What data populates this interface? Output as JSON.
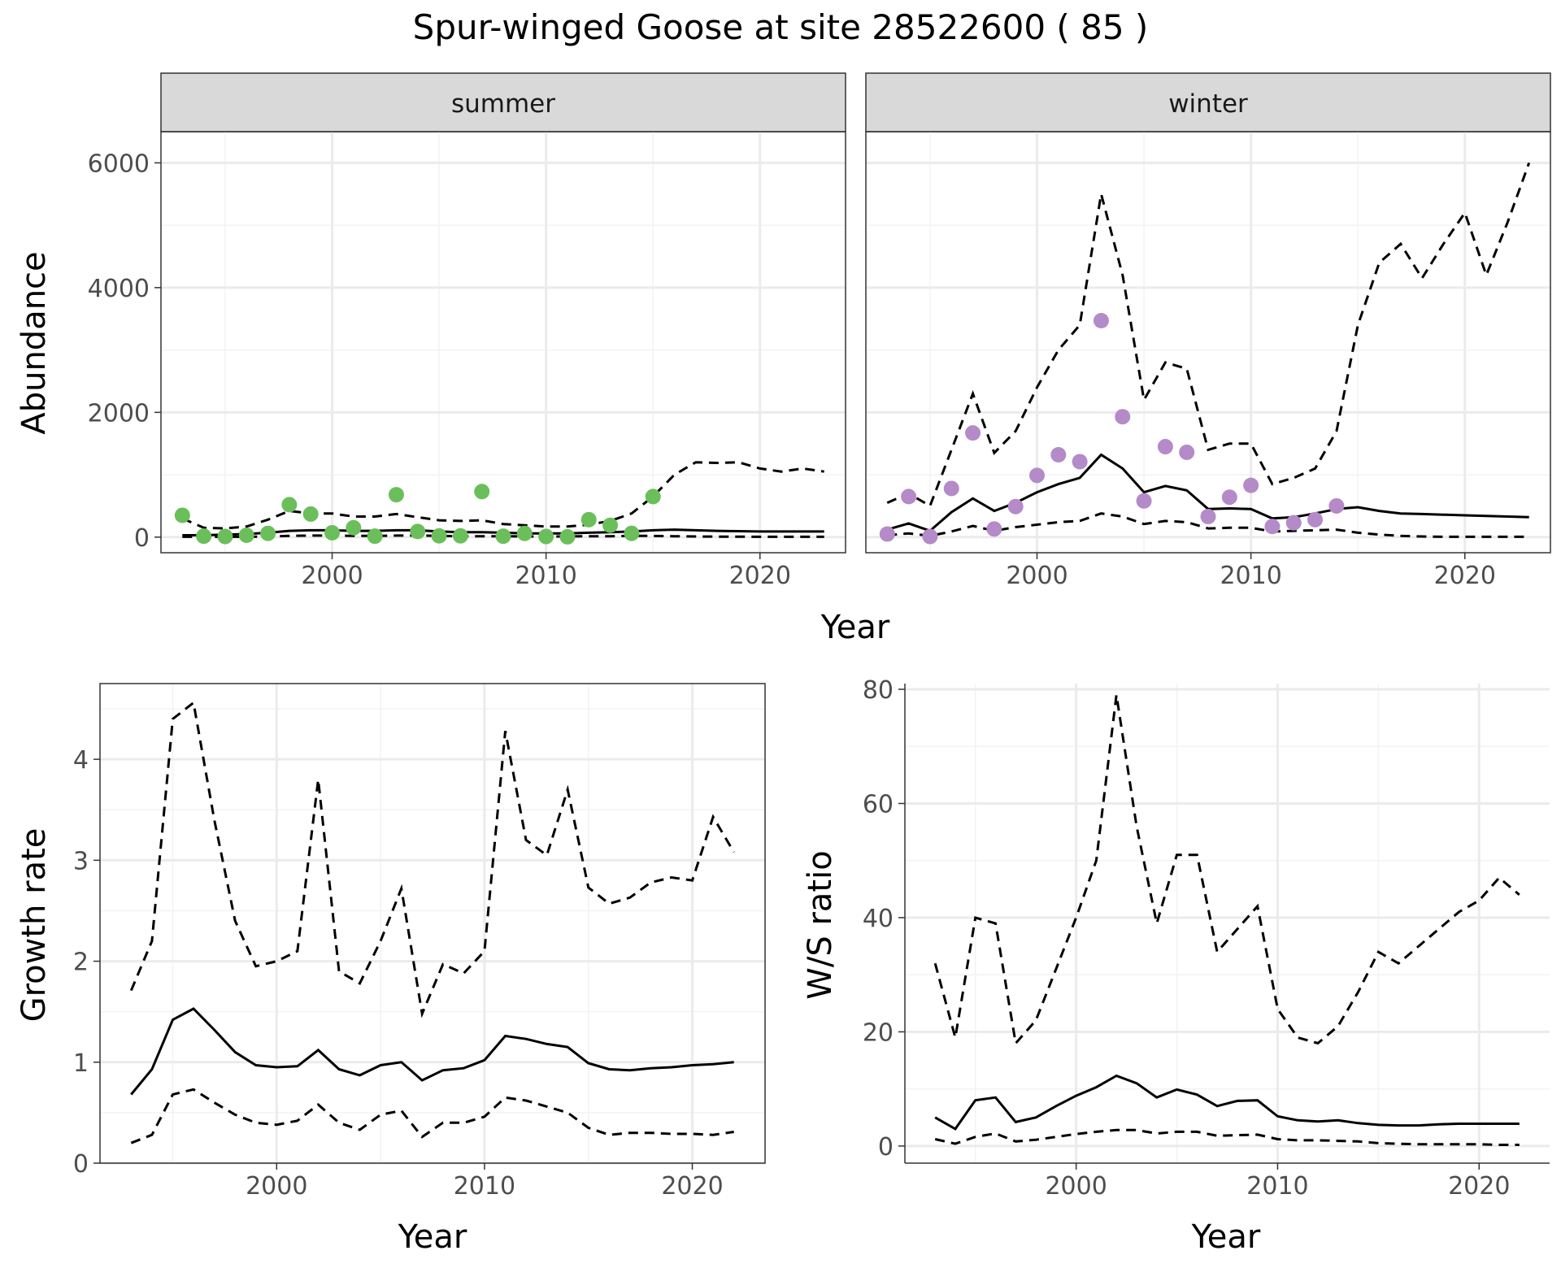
{
  "title": "Spur-winged Goose at site 28522600 ( 85 )",
  "colors": {
    "summer_points": "#6abf5a",
    "winter_points": "#b48ac8",
    "line": "#000000",
    "strip_fill": "#d9d9d9",
    "grid": "#ebebeb"
  },
  "chart_data": [
    {
      "type": "line",
      "panel": "abundance",
      "facets": [
        "summer",
        "winter"
      ],
      "xlabel": "Year",
      "ylabel": "Abundance",
      "xlim": [
        1992,
        2024
      ],
      "ylim": [
        -250,
        6500
      ],
      "xticks": [
        2000,
        2010,
        2020
      ],
      "yticks": [
        0,
        2000,
        4000,
        6000
      ],
      "grid": true,
      "facet_data": {
        "summer": {
          "x": [
            1993,
            1994,
            1995,
            1996,
            1997,
            1998,
            1999,
            2000,
            2001,
            2002,
            2003,
            2004,
            2005,
            2006,
            2007,
            2008,
            2009,
            2010,
            2011,
            2012,
            2013,
            2014,
            2015,
            2016,
            2017,
            2018,
            2019,
            2020,
            2021,
            2022,
            2023
          ],
          "mean": [
            30,
            30,
            40,
            50,
            70,
            100,
            110,
            110,
            100,
            100,
            110,
            110,
            90,
            80,
            80,
            70,
            60,
            60,
            60,
            70,
            80,
            90,
            110,
            120,
            110,
            100,
            95,
            90,
            90,
            90,
            90
          ],
          "upper": [
            300,
            150,
            140,
            170,
            280,
            420,
            380,
            380,
            330,
            330,
            370,
            320,
            270,
            260,
            270,
            210,
            190,
            170,
            170,
            200,
            260,
            380,
            650,
            1000,
            1200,
            1190,
            1200,
            1100,
            1050,
            1100,
            1050
          ],
          "lower": [
            5,
            5,
            5,
            5,
            10,
            20,
            25,
            25,
            20,
            20,
            25,
            25,
            20,
            15,
            15,
            15,
            10,
            10,
            10,
            15,
            15,
            20,
            20,
            15,
            10,
            8,
            8,
            5,
            5,
            5,
            5
          ],
          "points_x": [
            1993,
            1994,
            1995,
            1996,
            1997,
            1998,
            1999,
            2000,
            2001,
            2002,
            2003,
            2004,
            2005,
            2006,
            2007,
            2008,
            2009,
            2010,
            2011,
            2012,
            2013,
            2014,
            2015
          ],
          "points_y": [
            350,
            15,
            10,
            30,
            60,
            520,
            370,
            70,
            150,
            15,
            680,
            90,
            20,
            20,
            730,
            15,
            60,
            10,
            5,
            280,
            190,
            60,
            650
          ]
        },
        "winter": {
          "x": [
            1993,
            1994,
            1995,
            1996,
            1997,
            1998,
            1999,
            2000,
            2001,
            2002,
            2003,
            2004,
            2005,
            2006,
            2007,
            2008,
            2009,
            2010,
            2011,
            2012,
            2013,
            2014,
            2015,
            2016,
            2017,
            2018,
            2019,
            2020,
            2021,
            2022,
            2023
          ],
          "mean": [
            120,
            220,
            100,
            400,
            620,
            420,
            550,
            720,
            850,
            950,
            1320,
            1100,
            720,
            820,
            750,
            450,
            460,
            450,
            300,
            320,
            380,
            450,
            480,
            420,
            380,
            370,
            360,
            350,
            340,
            330,
            320
          ],
          "upper": [
            550,
            700,
            500,
            1400,
            2300,
            1350,
            1700,
            2400,
            3000,
            3400,
            5500,
            4200,
            2200,
            2800,
            2700,
            1400,
            1500,
            1500,
            850,
            950,
            1100,
            1700,
            3400,
            4400,
            4700,
            4150,
            4700,
            5200,
            4200,
            5050,
            6000
          ],
          "lower": [
            30,
            60,
            20,
            90,
            180,
            100,
            160,
            200,
            240,
            260,
            380,
            330,
            210,
            260,
            240,
            140,
            150,
            150,
            90,
            100,
            110,
            120,
            70,
            40,
            20,
            10,
            5,
            5,
            5,
            5,
            5
          ],
          "points_x": [
            1993,
            1994,
            1995,
            1996,
            1997,
            1998,
            1999,
            2000,
            2001,
            2002,
            2003,
            2004,
            2005,
            2006,
            2007,
            2008,
            2009,
            2010,
            2011,
            2012,
            2013,
            2014
          ],
          "points_y": [
            50,
            650,
            10,
            780,
            1670,
            130,
            490,
            990,
            1320,
            1210,
            3470,
            1930,
            580,
            1450,
            1360,
            330,
            640,
            830,
            170,
            230,
            280,
            500
          ]
        }
      }
    },
    {
      "type": "line",
      "panel": "growth",
      "xlabel": "Year",
      "ylabel": "Growth rate",
      "xlim": [
        1991.5,
        2023.5
      ],
      "ylim": [
        0,
        4.75
      ],
      "xticks": [
        2000,
        2010,
        2020
      ],
      "yticks": [
        0,
        1,
        2,
        3,
        4
      ],
      "grid": true,
      "x": [
        1993,
        1994,
        1995,
        1996,
        1997,
        1998,
        1999,
        2000,
        2001,
        2002,
        2003,
        2004,
        2005,
        2006,
        2007,
        2008,
        2009,
        2010,
        2011,
        2012,
        2013,
        2014,
        2015,
        2016,
        2017,
        2018,
        2019,
        2020,
        2021,
        2022
      ],
      "mean": [
        0.68,
        0.93,
        1.42,
        1.53,
        1.32,
        1.1,
        0.97,
        0.95,
        0.96,
        1.12,
        0.93,
        0.87,
        0.97,
        1.0,
        0.82,
        0.92,
        0.94,
        1.02,
        1.26,
        1.23,
        1.18,
        1.15,
        0.99,
        0.93,
        0.92,
        0.94,
        0.95,
        0.97,
        0.98,
        1.0
      ],
      "upper": [
        1.71,
        2.2,
        4.4,
        4.56,
        3.4,
        2.4,
        1.95,
        2.0,
        2.1,
        3.8,
        1.9,
        1.78,
        2.2,
        2.72,
        1.48,
        1.97,
        1.88,
        2.1,
        4.28,
        3.2,
        3.05,
        3.7,
        2.73,
        2.57,
        2.63,
        2.78,
        2.83,
        2.8,
        3.43,
        3.08
      ],
      "lower": [
        0.2,
        0.28,
        0.68,
        0.73,
        0.6,
        0.48,
        0.4,
        0.38,
        0.42,
        0.58,
        0.4,
        0.33,
        0.48,
        0.52,
        0.26,
        0.4,
        0.4,
        0.46,
        0.65,
        0.62,
        0.56,
        0.5,
        0.35,
        0.28,
        0.3,
        0.3,
        0.29,
        0.29,
        0.28,
        0.31
      ]
    },
    {
      "type": "line",
      "panel": "ratio",
      "xlabel": "Year",
      "ylabel": "W/S ratio",
      "xlim": [
        1991.5,
        2023.5
      ],
      "ylim": [
        -3,
        81
      ],
      "xticks": [
        2000,
        2010,
        2020
      ],
      "yticks": [
        0,
        20,
        40,
        60,
        80
      ],
      "grid": true,
      "x": [
        1993,
        1994,
        1995,
        1996,
        1997,
        1998,
        1999,
        2000,
        2001,
        2002,
        2003,
        2004,
        2005,
        2006,
        2007,
        2008,
        2009,
        2010,
        2011,
        2012,
        2013,
        2014,
        2015,
        2016,
        2017,
        2018,
        2019,
        2020,
        2021,
        2022
      ],
      "mean": [
        5.0,
        3.0,
        8.0,
        8.5,
        4.2,
        5.0,
        7.0,
        8.8,
        10.3,
        12.3,
        11.0,
        8.5,
        9.9,
        9.0,
        7.0,
        7.9,
        8.0,
        5.2,
        4.5,
        4.3,
        4.5,
        4.0,
        3.7,
        3.6,
        3.6,
        3.8,
        3.9,
        3.9,
        3.9,
        3.9
      ],
      "upper": [
        32,
        19,
        40,
        39,
        18,
        22,
        31,
        40,
        50,
        79,
        56,
        39,
        51,
        51,
        34,
        38,
        42,
        24,
        19,
        18,
        21,
        27,
        34,
        32,
        35,
        38,
        41,
        43,
        47,
        44
      ],
      "lower": [
        1.2,
        0.4,
        1.6,
        2.2,
        0.8,
        1.1,
        1.6,
        2.1,
        2.5,
        2.8,
        2.8,
        2.2,
        2.5,
        2.5,
        1.8,
        1.9,
        2.0,
        1.2,
        1.0,
        1.0,
        0.9,
        0.8,
        0.5,
        0.4,
        0.3,
        0.3,
        0.3,
        0.3,
        0.2,
        0.2
      ]
    }
  ]
}
